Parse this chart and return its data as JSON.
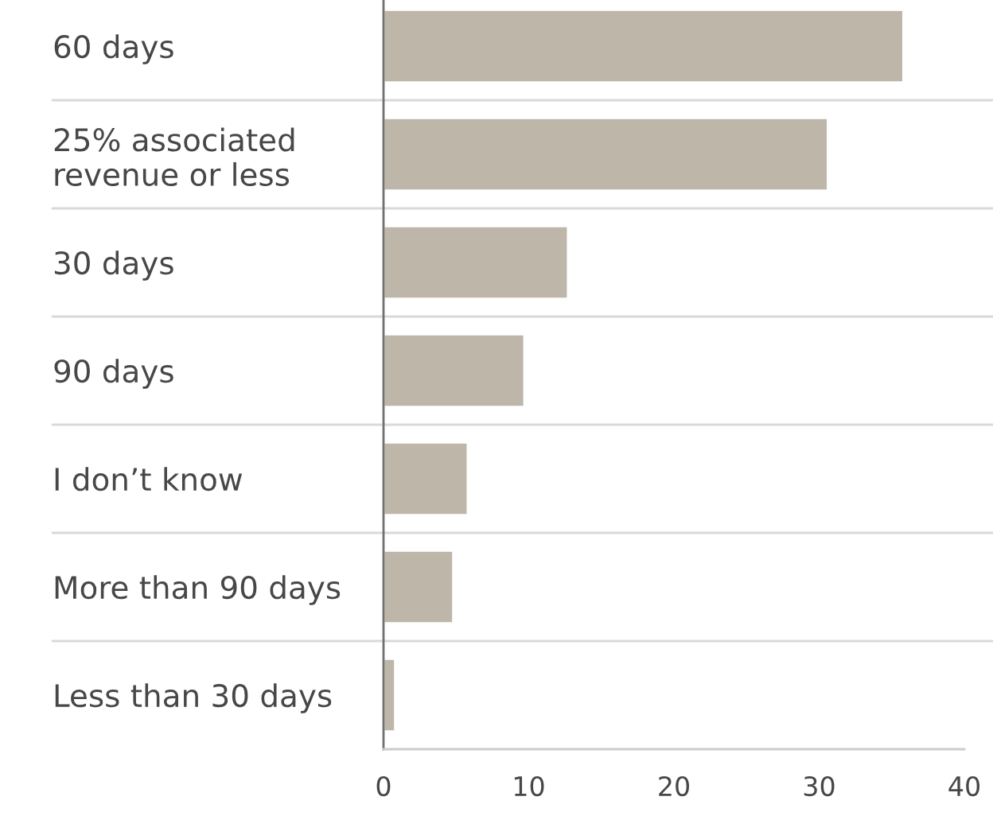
{
  "chart_data": {
    "type": "bar",
    "orientation": "horizontal",
    "categories": [
      "60 days",
      "25% associated\nrevenue or less",
      "30 days",
      "90 days",
      "I don’t know",
      "More than 90 days",
      "Less than 30 days"
    ],
    "values": [
      35.8,
      30.6,
      12.7,
      9.7,
      5.8,
      4.8,
      0.8
    ],
    "color": "#bdb6a9",
    "xlim": [
      0,
      40
    ],
    "xticks": [
      0,
      10,
      20,
      30,
      40
    ],
    "grid": "y"
  }
}
